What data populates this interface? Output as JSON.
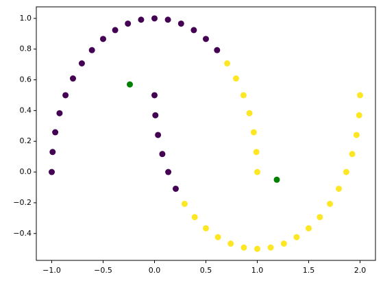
{
  "chart_data": {
    "type": "scatter",
    "series": [
      {
        "color": "#440154",
        "x": [
          0.6088,
          0.5,
          0.3827,
          0.2588,
          0.1305,
          0,
          -0.1305,
          -0.2588,
          -0.3827,
          -0.5,
          -0.6088,
          -0.7071,
          -0.7934,
          -0.866,
          -0.9239,
          -0.9659,
          -0.9914,
          -1,
          0,
          0.0086,
          0.0341,
          0.0761,
          0.134,
          0.2066
        ],
        "values": [
          0.7934,
          0.866,
          0.9239,
          0.9659,
          0.9914,
          1,
          0.9914,
          0.9659,
          0.9239,
          0.866,
          0.7934,
          0.7071,
          0.6088,
          0.5,
          0.3827,
          0.2588,
          0.1305,
          0,
          0.5,
          0.3695,
          0.2412,
          0.1173,
          0,
          -0.1088
        ]
      },
      {
        "color": "#fde725",
        "x": [
          1,
          0.9914,
          0.9659,
          0.9239,
          0.866,
          0.7934,
          0.7071,
          0.2929,
          0.3912,
          0.5,
          0.6173,
          0.7412,
          0.8695,
          1,
          1.1305,
          1.2588,
          1.3827,
          1.5,
          1.6088,
          1.7071,
          1.7934,
          1.866,
          1.9239,
          1.9659,
          1.9914,
          2
        ],
        "values": [
          0,
          0.1305,
          0.2588,
          0.3827,
          0.5,
          0.6088,
          0.7071,
          -0.2071,
          -0.2934,
          -0.366,
          -0.4239,
          -0.4659,
          -0.4914,
          -0.5,
          -0.4914,
          -0.4659,
          -0.4239,
          -0.366,
          -0.2934,
          -0.2071,
          -0.1088,
          0,
          0.1173,
          0.2412,
          0.3695,
          0.5
        ]
      },
      {
        "color": "#008000",
        "x": [
          -0.24,
          1.19
        ],
        "values": [
          0.57,
          -0.05
        ]
      }
    ],
    "xlim": [
      -1.15,
      2.15
    ],
    "ylim": [
      -0.575,
      1.075
    ],
    "xticks": [
      {
        "value": -1,
        "label": "−1.0"
      },
      {
        "value": -0.5,
        "label": "−0.5"
      },
      {
        "value": 0,
        "label": "0.0"
      },
      {
        "value": 0.5,
        "label": "0.5"
      },
      {
        "value": 1,
        "label": "1.0"
      },
      {
        "value": 1.5,
        "label": "1.5"
      },
      {
        "value": 2,
        "label": "2.0"
      }
    ],
    "yticks": [
      {
        "value": -0.4,
        "label": "−0.4"
      },
      {
        "value": -0.2,
        "label": "−0.2"
      },
      {
        "value": 0,
        "label": "0.0"
      },
      {
        "value": 0.2,
        "label": "0.2"
      },
      {
        "value": 0.4,
        "label": "0.4"
      },
      {
        "value": 0.6,
        "label": "0.6"
      },
      {
        "value": 0.8,
        "label": "0.8"
      },
      {
        "value": 1,
        "label": "1.0"
      }
    ],
    "grid": false
  }
}
